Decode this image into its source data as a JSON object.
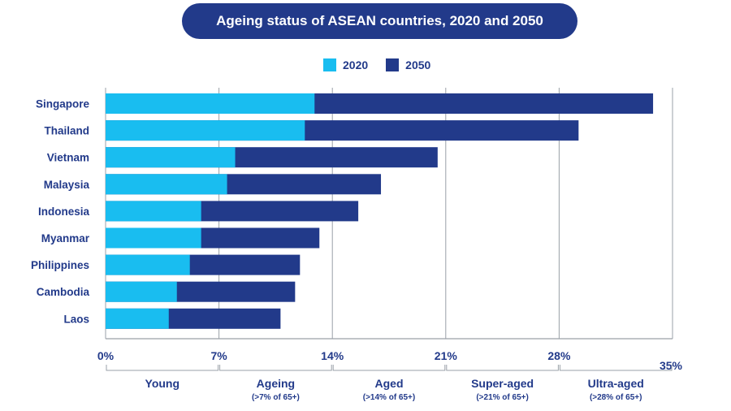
{
  "title": "Ageing status of ASEAN countries, 2020 and 2050",
  "colors": {
    "title_bg": "#223a8a",
    "series_2020": "#19bdf0",
    "series_2050": "#223a8a",
    "text": "#223a8a",
    "grid": "#9aa0a8"
  },
  "chart_data": {
    "type": "bar",
    "orientation": "horizontal",
    "stacked_overlay": true,
    "title": "Ageing status of ASEAN countries, 2020 and 2050",
    "categories": [
      "Singapore",
      "Thailand",
      "Vietnam",
      "Malaysia",
      "Indonesia",
      "Myanmar",
      "Philippines",
      "Cambodia",
      "Laos"
    ],
    "series": [
      {
        "name": "2020",
        "values": [
          12.9,
          12.3,
          8.0,
          7.5,
          5.9,
          5.9,
          5.2,
          4.4,
          3.9
        ]
      },
      {
        "name": "2050",
        "values": [
          33.8,
          29.2,
          20.5,
          17.0,
          15.6,
          13.2,
          12.0,
          11.7,
          10.8
        ]
      }
    ],
    "xlim": [
      0,
      35
    ],
    "xticks": [
      "0%",
      "7%",
      "14%",
      "21%",
      "28%",
      "35%"
    ],
    "xtick_values": [
      0,
      7,
      14,
      21,
      28,
      35
    ],
    "legend_position": "top",
    "grid": "vertical at tick values",
    "bands": [
      {
        "name": "Young",
        "sub": ""
      },
      {
        "name": "Ageing",
        "sub": "(>7% of 65+)"
      },
      {
        "name": "Aged",
        "sub": "(>14% of 65+)"
      },
      {
        "name": "Super-aged",
        "sub": "(>21% of 65+)"
      },
      {
        "name": "Ultra-aged",
        "sub": "(>28% of 65+)"
      }
    ]
  }
}
